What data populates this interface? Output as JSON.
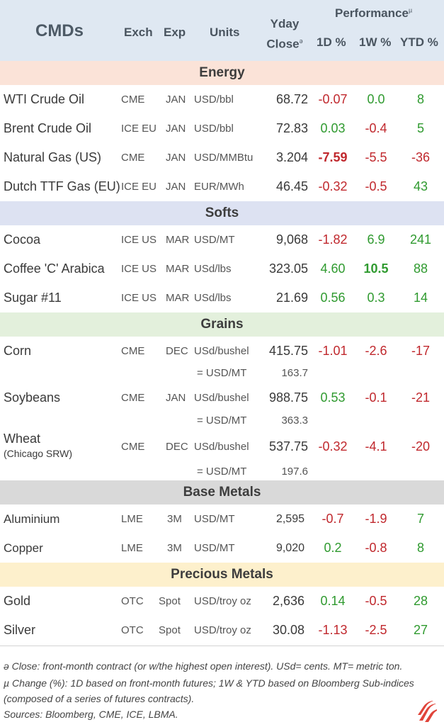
{
  "header": {
    "title": "CMDs",
    "exch": "Exch",
    "exp": "Exp",
    "units": "Units",
    "yday_line1": "Yday",
    "yday_line2": "Close",
    "yday_mark": "ə",
    "performance": "Performance",
    "perf_mark": "µ",
    "d1": "1D %",
    "w1": "1W %",
    "ytd": "YTD %"
  },
  "sections": {
    "energy": {
      "label": "Energy",
      "color": "#fbe3d8"
    },
    "softs": {
      "label": "Softs",
      "color": "#dde2f2"
    },
    "grains": {
      "label": "Grains",
      "color": "#e3f0dc"
    },
    "base": {
      "label": "Base Metals",
      "color": "#d9d9d9"
    },
    "precious": {
      "label": "Precious Metals",
      "color": "#fdf0cc"
    }
  },
  "rows": {
    "wti": {
      "name": "WTI Crude Oil",
      "exch": "CME",
      "exp": "JAN",
      "units": "USD/bbl",
      "close": "68.72",
      "d1": "-0.07",
      "w1": "0.0",
      "ytd": "8"
    },
    "brent": {
      "name": "Brent Crude Oil",
      "exch": "ICE EU",
      "exp": "JAN",
      "units": "USD/bbl",
      "close": "72.83",
      "d1": "0.03",
      "w1": "-0.4",
      "ytd": "5"
    },
    "natgas": {
      "name": "Natural Gas (US)",
      "exch": "CME",
      "exp": "JAN",
      "units": "USD/MMBtu",
      "close": "3.204",
      "d1": "-7.59",
      "w1": "-5.5",
      "ytd": "-36"
    },
    "ttf": {
      "name": "Dutch TTF Gas (EU)",
      "exch": "ICE EU",
      "exp": "JAN",
      "units": "EUR/MWh",
      "close": "46.45",
      "d1": "-0.32",
      "w1": "-0.5",
      "ytd": "43"
    },
    "cocoa": {
      "name": "Cocoa",
      "exch": "ICE US",
      "exp": "MAR",
      "units": "USD/MT",
      "close": "9,068",
      "d1": "-1.82",
      "w1": "6.9",
      "ytd": "241"
    },
    "coffee": {
      "name": "Coffee 'C' Arabica",
      "exch": "ICE US",
      "exp": "MAR",
      "units": "USd/lbs",
      "close": "323.05",
      "d1": "4.60",
      "w1": "10.5",
      "ytd": "88"
    },
    "sugar": {
      "name": "Sugar #11",
      "exch": "ICE US",
      "exp": "MAR",
      "units": "USd/lbs",
      "close": "21.69",
      "d1": "0.56",
      "w1": "0.3",
      "ytd": "14"
    },
    "corn": {
      "name": "Corn",
      "exch": "CME",
      "exp": "DEC",
      "units": "USd/bushel",
      "close": "415.75",
      "d1": "-1.01",
      "w1": "-2.6",
      "ytd": "-17",
      "sub_label": "= USD/MT",
      "sub_value": "163.7"
    },
    "soy": {
      "name": "Soybeans",
      "exch": "CME",
      "exp": "JAN",
      "units": "USd/bushel",
      "close": "988.75",
      "d1": "0.53",
      "w1": "-0.1",
      "ytd": "-21",
      "sub_label": "= USD/MT",
      "sub_value": "363.3"
    },
    "wheat": {
      "name": "Wheat",
      "name_sub": "(Chicago SRW)",
      "exch": "CME",
      "exp": "DEC",
      "units": "USd/bushel",
      "close": "537.75",
      "d1": "-0.32",
      "w1": "-4.1",
      "ytd": "-20",
      "sub_label": "= USD/MT",
      "sub_value": "197.6"
    },
    "alu": {
      "name": "Aluminium",
      "exch": "LME",
      "exp": "3M",
      "units": "USD/MT",
      "close": "2,595",
      "d1": "-0.7",
      "w1": "-1.9",
      "ytd": "7"
    },
    "copper": {
      "name": "Copper",
      "exch": "LME",
      "exp": "3M",
      "units": "USD/MT",
      "close": "9,020",
      "d1": "0.2",
      "w1": "-0.8",
      "ytd": "8"
    },
    "gold": {
      "name": "Gold",
      "exch": "OTC",
      "exp": "Spot",
      "units": "USD/troy oz",
      "close": "2,636",
      "d1": "0.14",
      "w1": "-0.5",
      "ytd": "28"
    },
    "silver": {
      "name": "Silver",
      "exch": "OTC",
      "exp": "Spot",
      "units": "USD/troy oz",
      "close": "30.08",
      "d1": "-1.13",
      "w1": "-2.5",
      "ytd": "27"
    }
  },
  "footnotes": {
    "close": "ə Close: front-month contract (or w/the highest open interest). USd= cents. MT= metric ton.",
    "change1": "µ Change (%): 1D based on front-month futures; 1W & YTD based on Bloomberg Sub-indices",
    "change2": "(composed of a series of futures contracts).",
    "sources": "Sources: Bloomberg, CME, ICE, LBMA."
  },
  "colors": {
    "negative": "#c0282d",
    "positive": "#2f9a2f",
    "header_bg": "#dfe8f2",
    "logo": "#e0443a"
  },
  "icons": {
    "logo": "brand-logo-icon"
  }
}
